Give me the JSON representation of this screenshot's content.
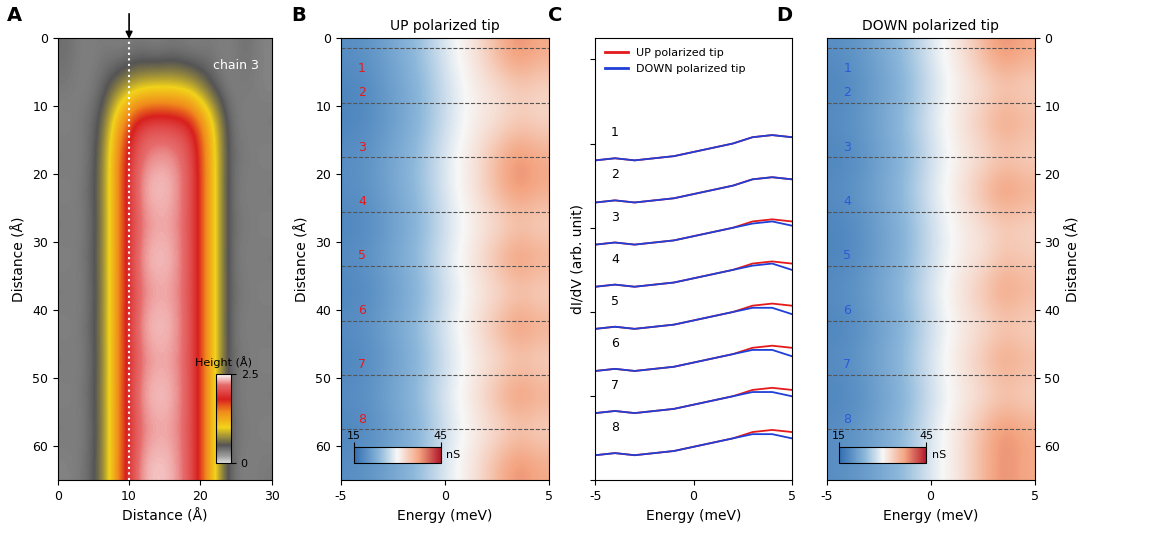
{
  "chart_data": [
    {
      "type": "heatmap",
      "panel": "A",
      "xlabel": "Distance (Å)",
      "ylabel": "Distance (Å)",
      "xlim": [
        0,
        30
      ],
      "ylim": [
        65,
        0
      ],
      "xticks": [
        0,
        10,
        20,
        30
      ],
      "yticks": [
        0,
        10,
        20,
        30,
        40,
        50,
        60
      ],
      "annotations": [
        {
          "text": "chain 3",
          "x": 25,
          "y": 4
        }
      ],
      "arrow_x": 10,
      "x": [
        1.25,
        3.75,
        6.25,
        8.75,
        11.25,
        13.75,
        16.25,
        18.75,
        21.25,
        23.75,
        26.25,
        28.75
      ],
      "y": [
        2.5,
        7.5,
        12.5,
        17.5,
        22.5,
        27.5,
        32.5,
        37.5,
        42.5,
        47.5,
        52.5,
        57.5,
        62.5
      ],
      "cells": [
        [
          0.4,
          0.3,
          0.35,
          0.3,
          0.35,
          0.3,
          0.35,
          0.3,
          0.35,
          0.3,
          0.4,
          0.3
        ],
        [
          0.35,
          0.3,
          0.4,
          0.7,
          0.9,
          0.95,
          0.95,
          0.85,
          0.5,
          0.3,
          0.35,
          0.3
        ],
        [
          0.3,
          0.35,
          0.5,
          1.4,
          2.0,
          2.1,
          2.05,
          1.9,
          1.2,
          0.4,
          0.3,
          0.35
        ],
        [
          0.35,
          0.3,
          0.6,
          1.6,
          2.2,
          2.3,
          2.3,
          2.1,
          1.3,
          0.4,
          0.35,
          0.3
        ],
        [
          0.3,
          0.35,
          0.6,
          1.6,
          2.3,
          2.4,
          2.35,
          2.1,
          1.3,
          0.4,
          0.3,
          0.35
        ],
        [
          0.35,
          0.3,
          0.6,
          1.6,
          2.2,
          2.3,
          2.3,
          2.1,
          1.3,
          0.4,
          0.35,
          0.3
        ],
        [
          0.3,
          0.35,
          0.6,
          1.6,
          2.3,
          2.4,
          2.35,
          2.1,
          1.3,
          0.4,
          0.3,
          0.35
        ],
        [
          0.35,
          0.3,
          0.6,
          1.6,
          2.2,
          2.3,
          2.3,
          2.1,
          1.3,
          0.4,
          0.35,
          0.3
        ],
        [
          0.3,
          0.35,
          0.6,
          1.6,
          2.3,
          2.4,
          2.35,
          2.1,
          1.3,
          0.4,
          0.3,
          0.35
        ],
        [
          0.35,
          0.3,
          0.6,
          1.6,
          2.2,
          2.3,
          2.3,
          2.1,
          1.3,
          0.4,
          0.35,
          0.3
        ],
        [
          0.3,
          0.35,
          0.6,
          1.6,
          2.3,
          2.4,
          2.35,
          2.1,
          1.3,
          0.4,
          0.3,
          0.35
        ],
        [
          0.35,
          0.3,
          0.6,
          1.6,
          2.2,
          2.3,
          2.3,
          2.1,
          1.3,
          0.4,
          0.35,
          0.3
        ],
        [
          0.3,
          0.35,
          0.6,
          1.6,
          2.3,
          2.4,
          2.35,
          2.1,
          1.3,
          0.4,
          0.3,
          0.35
        ]
      ],
      "colorbar": {
        "range": [
          0,
          2.5
        ],
        "ticks": [
          0,
          2.5
        ],
        "label": "Height (Å)"
      }
    },
    {
      "type": "heatmap",
      "panel": "B",
      "title": "UP polarized tip",
      "xlabel": "Energy (meV)",
      "ylabel": "Distance (Å)",
      "xlim": [
        -5,
        5
      ],
      "ylim": [
        65,
        0
      ],
      "xticks": [
        -5,
        0,
        5
      ],
      "yticks": [
        0,
        10,
        20,
        30,
        40,
        50,
        60
      ],
      "color": "#e41a1c",
      "row_lines": [
        1.5,
        9.5,
        17.5,
        25.5,
        33.5,
        41.5,
        49.5,
        57.5
      ],
      "row_labels": [
        {
          "text": "1",
          "x": -4,
          "y": 4.5
        },
        {
          "text": "2",
          "x": -4,
          "y": 8
        },
        {
          "text": "3",
          "x": -4,
          "y": 16
        },
        {
          "text": "4",
          "x": -4,
          "y": 24
        },
        {
          "text": "5",
          "x": -4,
          "y": 32
        },
        {
          "text": "6",
          "x": -4,
          "y": 40
        },
        {
          "text": "7",
          "x": -4,
          "y": 48
        },
        {
          "text": "8",
          "x": -4,
          "y": 56
        }
      ],
      "x": [
        -4.5,
        -3.5,
        -2.5,
        -1.5,
        -0.5,
        0.5,
        1.5,
        2.5,
        3.5,
        4.5
      ],
      "y": [
        2.5,
        7.5,
        12.5,
        17.5,
        22.5,
        27.5,
        32.5,
        37.5,
        42.5,
        47.5,
        52.5,
        57.5,
        62.5
      ],
      "cells": [
        [
          19,
          20,
          22,
          24,
          27,
          30,
          32,
          36,
          39,
          37
        ],
        [
          18,
          19,
          21,
          23,
          26,
          29,
          31,
          32,
          34,
          33
        ],
        [
          18,
          19,
          21,
          23,
          26,
          29,
          31,
          32,
          34,
          33
        ],
        [
          19,
          20,
          22,
          24,
          27,
          30,
          32,
          36,
          39,
          37
        ],
        [
          19,
          20,
          22,
          24,
          27,
          30,
          32,
          36,
          39,
          37
        ],
        [
          18,
          19,
          21,
          23,
          26,
          29,
          31,
          32,
          34,
          33
        ],
        [
          19,
          20,
          22,
          24,
          27,
          30,
          32,
          36,
          39,
          37
        ],
        [
          18,
          19,
          21,
          23,
          26,
          29,
          31,
          32,
          34,
          33
        ],
        [
          19,
          20,
          22,
          24,
          27,
          30,
          32,
          36,
          39,
          37
        ],
        [
          18,
          19,
          21,
          23,
          26,
          29,
          31,
          32,
          34,
          33
        ],
        [
          19,
          20,
          22,
          24,
          27,
          30,
          32,
          36,
          39,
          37
        ],
        [
          18,
          19,
          21,
          23,
          26,
          29,
          31,
          32,
          34,
          33
        ],
        [
          19,
          20,
          22,
          24,
          27,
          30,
          32,
          36,
          39,
          37
        ]
      ],
      "colorbar": {
        "range": [
          15,
          45
        ],
        "ticks": [
          15,
          45
        ],
        "label": "nS"
      }
    },
    {
      "type": "line",
      "panel": "C",
      "xlabel": "Energy (meV)",
      "ylabel": "dI/dV (arb. unit)",
      "xlim": [
        -5,
        5
      ],
      "ylim": [
        0,
        10.5
      ],
      "xticks": [
        -5,
        0,
        5
      ],
      "yticks": [
        0,
        2,
        4,
        6,
        8,
        10
      ],
      "tick_labels": "x",
      "legend": "upper left",
      "x": [
        -5,
        -4,
        -3,
        -2,
        -1,
        0,
        1,
        2,
        3,
        4,
        5
      ],
      "series": [
        {
          "name": "UP polarized tip",
          "color": "#e41a1c",
          "curves": [
            [
              7.6,
              7.65,
              7.6,
              7.65,
              7.7,
              7.8,
              7.9,
              8.0,
              8.15,
              8.2,
              8.15
            ],
            [
              6.6,
              6.65,
              6.6,
              6.65,
              6.7,
              6.8,
              6.9,
              7.0,
              7.15,
              7.2,
              7.15
            ],
            [
              5.6,
              5.65,
              5.6,
              5.65,
              5.7,
              5.8,
              5.9,
              6.0,
              6.15,
              6.2,
              6.15
            ],
            [
              4.6,
              4.65,
              4.6,
              4.65,
              4.7,
              4.8,
              4.9,
              5.0,
              5.15,
              5.2,
              5.15
            ],
            [
              3.6,
              3.65,
              3.6,
              3.65,
              3.7,
              3.8,
              3.9,
              4.0,
              4.15,
              4.2,
              4.15
            ],
            [
              2.6,
              2.65,
              2.6,
              2.65,
              2.7,
              2.8,
              2.9,
              3.0,
              3.15,
              3.2,
              3.15
            ],
            [
              1.6,
              1.65,
              1.6,
              1.65,
              1.7,
              1.8,
              1.9,
              2.0,
              2.15,
              2.2,
              2.15
            ],
            [
              0.6,
              0.65,
              0.6,
              0.65,
              0.7,
              0.8,
              0.9,
              1.0,
              1.15,
              1.2,
              1.15
            ]
          ]
        },
        {
          "name": "DOWN polarized tip",
          "color": "#1f3fd6",
          "curves": [
            [
              7.6,
              7.65,
              7.6,
              7.65,
              7.7,
              7.8,
              7.9,
              8.0,
              8.15,
              8.2,
              8.15
            ],
            [
              6.6,
              6.65,
              6.6,
              6.65,
              6.7,
              6.8,
              6.9,
              7.0,
              7.15,
              7.2,
              7.15
            ],
            [
              5.6,
              5.65,
              5.6,
              5.65,
              5.7,
              5.8,
              5.9,
              6.0,
              6.1,
              6.15,
              6.05
            ],
            [
              4.6,
              4.65,
              4.6,
              4.65,
              4.7,
              4.8,
              4.9,
              5.0,
              5.1,
              5.15,
              5.0
            ],
            [
              3.6,
              3.65,
              3.6,
              3.65,
              3.7,
              3.8,
              3.9,
              4.0,
              4.1,
              4.1,
              3.95
            ],
            [
              2.6,
              2.65,
              2.6,
              2.65,
              2.7,
              2.8,
              2.9,
              3.0,
              3.1,
              3.1,
              2.95
            ],
            [
              1.6,
              1.65,
              1.6,
              1.65,
              1.7,
              1.8,
              1.9,
              2.0,
              2.1,
              2.1,
              2.0
            ],
            [
              0.6,
              0.65,
              0.6,
              0.65,
              0.7,
              0.8,
              0.9,
              1.0,
              1.1,
              1.1,
              1.0
            ]
          ]
        }
      ],
      "curve_labels": [
        {
          "text": "1",
          "x": -4,
          "y": 8.1
        },
        {
          "text": "2",
          "x": -4,
          "y": 7.1
        },
        {
          "text": "3",
          "x": -4,
          "y": 6.1
        },
        {
          "text": "4",
          "x": -4,
          "y": 5.1
        },
        {
          "text": "5",
          "x": -4,
          "y": 4.1
        },
        {
          "text": "6",
          "x": -4,
          "y": 3.1
        },
        {
          "text": "7",
          "x": -4,
          "y": 2.1
        },
        {
          "text": "8",
          "x": -4,
          "y": 1.1
        }
      ]
    },
    {
      "type": "heatmap",
      "panel": "D",
      "title": "DOWN polarized tip",
      "xlabel": "Energy (meV)",
      "ylabel": "Distance (Å)",
      "xlim": [
        -5,
        5
      ],
      "ylim": [
        65,
        0
      ],
      "xticks": [
        -5,
        0,
        5
      ],
      "yticks": [
        0,
        10,
        20,
        30,
        40,
        50,
        60
      ],
      "color": "#2a5bd7",
      "row_lines": [
        1.5,
        9.5,
        17.5,
        25.5,
        33.5,
        41.5,
        49.5,
        57.5
      ],
      "row_labels": [
        {
          "text": "1",
          "x": -4,
          "y": 4.5
        },
        {
          "text": "2",
          "x": -4,
          "y": 8
        },
        {
          "text": "3",
          "x": -4,
          "y": 16
        },
        {
          "text": "4",
          "x": -4,
          "y": 24
        },
        {
          "text": "5",
          "x": -4,
          "y": 32
        },
        {
          "text": "6",
          "x": -4,
          "y": 40
        },
        {
          "text": "7",
          "x": -4,
          "y": 48
        },
        {
          "text": "8",
          "x": -4,
          "y": 56
        }
      ],
      "x": [
        -4.5,
        -3.5,
        -2.5,
        -1.5,
        -0.5,
        0.5,
        1.5,
        2.5,
        3.5,
        4.5
      ],
      "y": [
        2.5,
        7.5,
        12.5,
        17.5,
        22.5,
        27.5,
        32.5,
        37.5,
        42.5,
        47.5,
        52.5,
        57.5,
        62.5
      ],
      "cells": [
        [
          19,
          20,
          22,
          24,
          27,
          30,
          32,
          36,
          39,
          37
        ],
        [
          18,
          19,
          21,
          23,
          26,
          29,
          31,
          32,
          34,
          33
        ],
        [
          19,
          20,
          22,
          24,
          27,
          30,
          32,
          35,
          38,
          36
        ],
        [
          18,
          19,
          21,
          23,
          26,
          29,
          31,
          32,
          34,
          33
        ],
        [
          19,
          20,
          22,
          24,
          27,
          30,
          32,
          36,
          39,
          37
        ],
        [
          18,
          19,
          21,
          23,
          26,
          29,
          31,
          32,
          34,
          33
        ],
        [
          18,
          19,
          21,
          23,
          26,
          29,
          31,
          32,
          35,
          34
        ],
        [
          19,
          20,
          22,
          24,
          27,
          30,
          32,
          35,
          38,
          36
        ],
        [
          18,
          19,
          21,
          23,
          26,
          29,
          31,
          32,
          34,
          33
        ],
        [
          19,
          20,
          22,
          24,
          27,
          30,
          32,
          35,
          38,
          36
        ],
        [
          18,
          19,
          21,
          23,
          26,
          29,
          31,
          32,
          34,
          33
        ],
        [
          19,
          20,
          22,
          24,
          27,
          30,
          32,
          36,
          39,
          37
        ],
        [
          19,
          20,
          22,
          24,
          27,
          30,
          32,
          36,
          39,
          37
        ]
      ],
      "colorbar": {
        "range": [
          15,
          45
        ],
        "ticks": [
          15,
          45
        ],
        "label": "nS"
      }
    }
  ]
}
